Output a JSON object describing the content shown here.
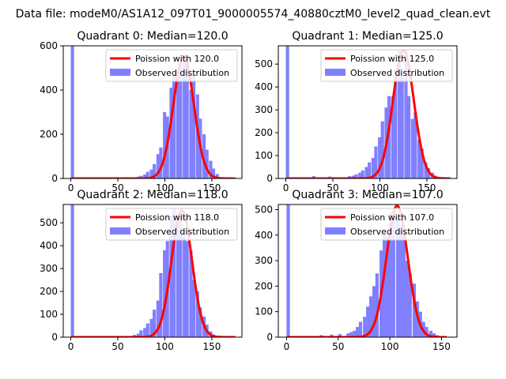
{
  "figure": {
    "suptitle": "Data file: modeM0/AS1A12_097T01_9000005574_40880cztM0_level2_quad_clean.evt"
  },
  "colors": {
    "hist": "#8080ff",
    "curve": "#ff0000",
    "axes": "#000000",
    "legend_border": "#cccccc"
  },
  "chart_data": [
    {
      "type": "bar",
      "title": "Quadrant 0: Median=120.0",
      "xlim": [
        -8,
        182
      ],
      "ylim": [
        0,
        600
      ],
      "xticks": [
        0,
        50,
        100,
        150
      ],
      "yticks": [
        0,
        200,
        400,
        600
      ],
      "legend": [
        "Poission with 120.0",
        "Observed distribution"
      ],
      "legend_position": "top-right",
      "bin_width": 3.5,
      "bins": [
        0,
        66,
        70,
        73,
        77,
        80,
        84,
        87,
        91,
        94,
        98,
        101,
        105,
        108,
        112,
        115,
        119,
        122,
        126,
        129,
        133,
        136,
        140,
        143,
        147,
        150,
        154
      ],
      "counts": [
        600,
        5,
        8,
        12,
        18,
        30,
        40,
        65,
        110,
        140,
        300,
        280,
        410,
        470,
        460,
        520,
        560,
        540,
        400,
        470,
        380,
        270,
        200,
        130,
        80,
        45,
        20
      ],
      "poisson_mean": 120,
      "poisson_peak": 550,
      "curve_x": [
        0,
        175
      ]
    },
    {
      "type": "bar",
      "title": "Quadrant 1: Median=125.0",
      "xlim": [
        -8,
        182
      ],
      "ylim": [
        0,
        580
      ],
      "xticks": [
        0,
        50,
        100,
        150
      ],
      "yticks": [
        0,
        100,
        200,
        300,
        400,
        500
      ],
      "legend": [
        "Poission with 125.0",
        "Observed distribution"
      ],
      "legend_position": "top-right",
      "bin_width": 3.5,
      "bins": [
        0,
        28,
        45,
        66,
        70,
        73,
        77,
        80,
        84,
        87,
        91,
        94,
        98,
        101,
        105,
        108,
        112,
        115,
        119,
        122,
        126,
        129,
        133,
        136,
        140,
        143,
        147,
        150,
        154,
        157
      ],
      "counts": [
        580,
        10,
        8,
        10,
        12,
        18,
        25,
        35,
        50,
        70,
        90,
        140,
        180,
        250,
        310,
        360,
        360,
        480,
        560,
        450,
        560,
        360,
        260,
        290,
        170,
        130,
        70,
        45,
        25,
        12
      ],
      "poisson_mean": 125,
      "poisson_peak": 560,
      "curve_x": [
        0,
        175
      ]
    },
    {
      "type": "bar",
      "title": "Quadrant 2: Median=118.0",
      "xlim": [
        -8,
        182
      ],
      "ylim": [
        0,
        580
      ],
      "xticks": [
        0,
        50,
        100,
        150
      ],
      "yticks": [
        0,
        100,
        200,
        300,
        400,
        500
      ],
      "legend": [
        "Poission with 118.0",
        "Observed distribution"
      ],
      "legend_position": "top-right",
      "bin_width": 3.5,
      "bins": [
        0,
        66,
        70,
        73,
        77,
        80,
        84,
        87,
        91,
        94,
        98,
        101,
        105,
        108,
        112,
        115,
        119,
        122,
        126,
        129,
        133,
        136,
        140,
        143,
        147,
        150
      ],
      "counts": [
        580,
        10,
        15,
        30,
        40,
        60,
        80,
        120,
        160,
        280,
        380,
        420,
        530,
        560,
        500,
        540,
        450,
        420,
        380,
        250,
        200,
        130,
        90,
        55,
        25,
        12
      ],
      "poisson_mean": 118,
      "poisson_peak": 555,
      "curve_x": [
        0,
        175
      ]
    },
    {
      "type": "bar",
      "title": "Quadrant 3: Median=107.0",
      "xlim": [
        -8,
        165
      ],
      "ylim": [
        0,
        520
      ],
      "xticks": [
        0,
        50,
        100,
        150
      ],
      "yticks": [
        0,
        100,
        200,
        300,
        400,
        500
      ],
      "legend": [
        "Poission with 107.0",
        "Observed distribution"
      ],
      "legend_position": "top-right",
      "bin_width": 3.2,
      "bins": [
        0,
        32,
        42,
        50,
        58,
        61,
        64,
        67,
        70,
        74,
        77,
        80,
        83,
        86,
        90,
        93,
        96,
        99,
        102,
        106,
        109,
        112,
        115,
        118,
        122,
        125,
        128,
        131,
        134,
        138,
        141,
        144
      ],
      "counts": [
        520,
        8,
        10,
        12,
        15,
        20,
        25,
        40,
        60,
        80,
        120,
        160,
        200,
        250,
        340,
        400,
        400,
        490,
        500,
        470,
        440,
        400,
        300,
        250,
        210,
        140,
        100,
        60,
        40,
        25,
        15,
        8
      ],
      "poisson_mean": 107,
      "poisson_peak": 515,
      "curve_x": [
        0,
        155
      ]
    }
  ]
}
